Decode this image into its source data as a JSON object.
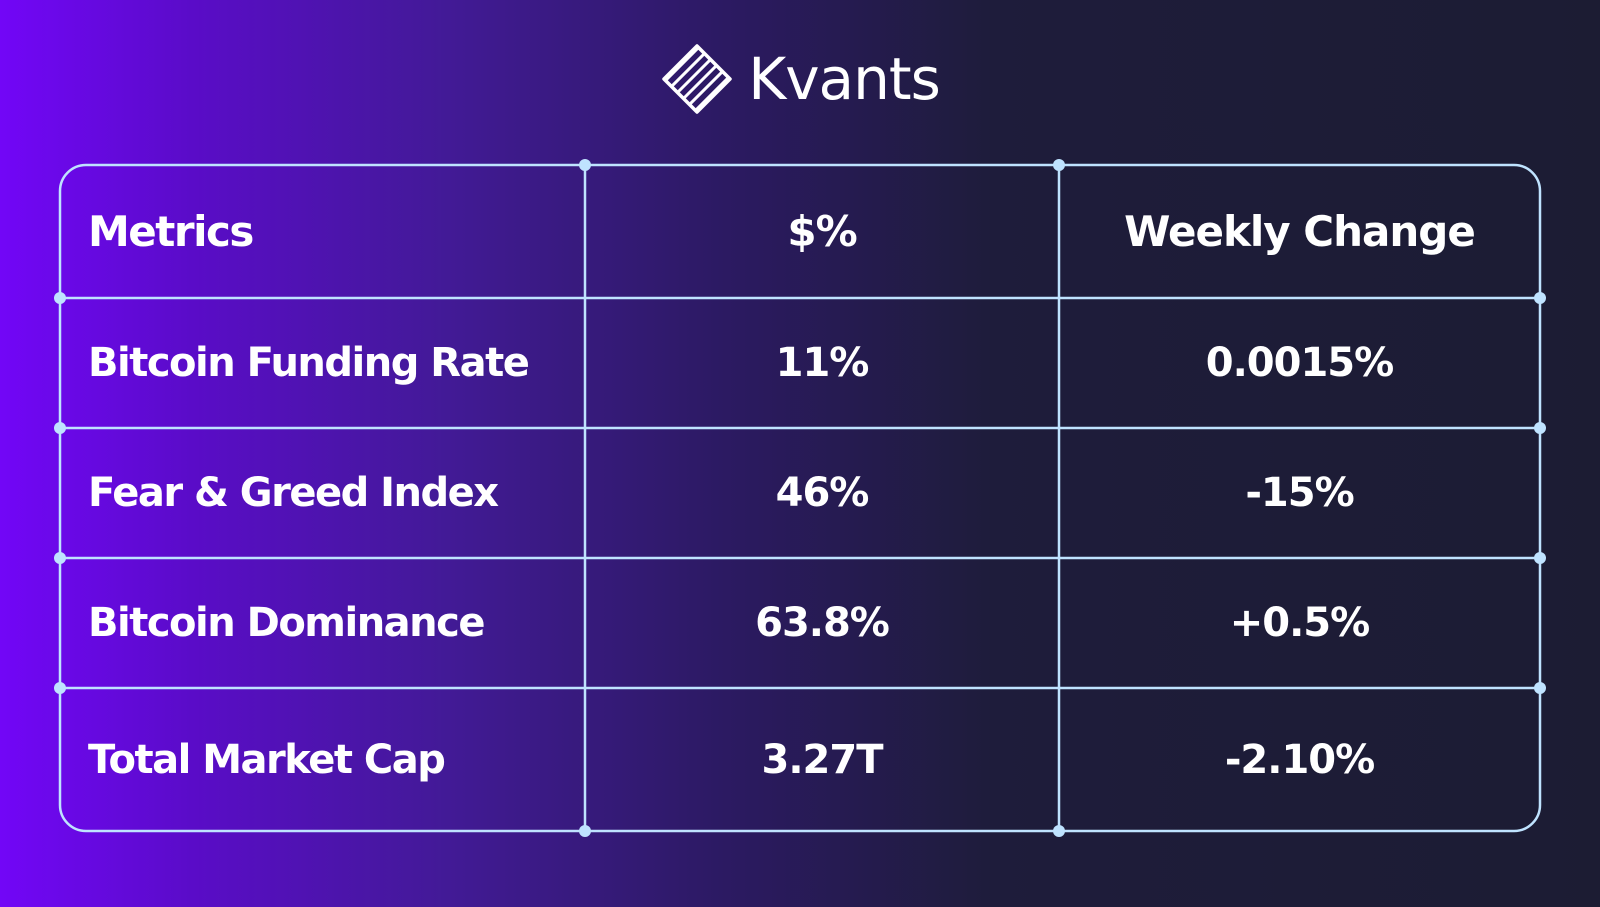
{
  "brand": {
    "name": "Kvants",
    "logo_icon": "striped-diamond-icon"
  },
  "colors": {
    "background_left": "#7206f7",
    "background_right": "#1c1c33",
    "grid_line": "#bfe3ff",
    "text": "#ffffff"
  },
  "chart_data": {
    "type": "table",
    "columns": [
      "Metrics",
      "$%",
      "Weekly Change"
    ],
    "rows": [
      [
        "Bitcoin Funding Rate",
        "11%",
        "0.0015%"
      ],
      [
        "Fear & Greed Index",
        "46%",
        "-15%"
      ],
      [
        "Bitcoin Dominance",
        "63.8%",
        "+0.5%"
      ],
      [
        "Total Market Cap",
        "3.27T",
        "-2.10%"
      ]
    ]
  }
}
